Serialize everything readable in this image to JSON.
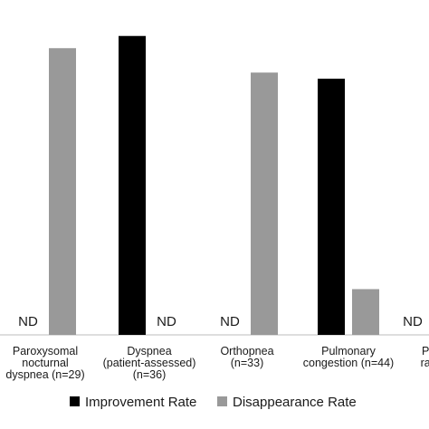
{
  "chart_data": {
    "type": "bar",
    "categories": [
      [
        "Paroxysomal",
        "nocturnal",
        "dyspnea (n=29)"
      ],
      [
        "Dyspnea",
        "(patient-assessed)",
        "(n=36)"
      ],
      [
        "Orthopnea",
        "(n=33)"
      ],
      [
        "Pulmonary",
        "congestion (n=44)"
      ],
      [
        "Pul",
        "rale"
      ]
    ],
    "series": [
      {
        "name": "Improvement Rate",
        "color": "#000000",
        "values": [
          null,
          0.98,
          null,
          0.84,
          null
        ]
      },
      {
        "name": "Disappearance Rate",
        "color": "#999999",
        "values": [
          0.94,
          null,
          0.86,
          0.15,
          null
        ]
      }
    ],
    "not_determined_label": "ND",
    "not_determined": [
      {
        "category": 0,
        "series": 0
      },
      {
        "category": 1,
        "series": 1
      },
      {
        "category": 2,
        "series": 0
      },
      {
        "category": 4,
        "series": 0
      }
    ],
    "ylim": [
      0,
      1
    ],
    "legend_position": "bottom",
    "grid": false
  }
}
